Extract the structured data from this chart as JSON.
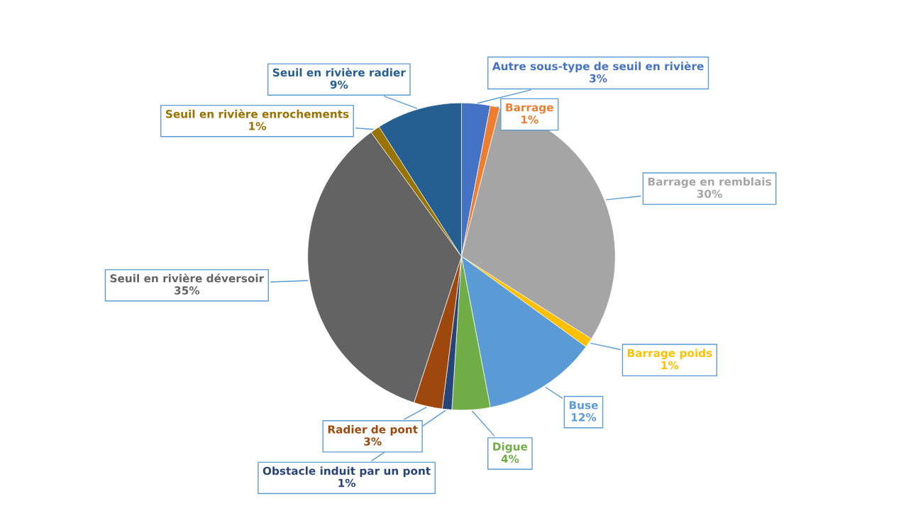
{
  "chart_data": {
    "type": "pie",
    "categories": [
      "Autre sous-type de seuil en rivière",
      "Barrage",
      "Barrage en remblais",
      "Barrage poids",
      "Buse",
      "Digue",
      "Obstacle induit par un pont",
      "Radier de pont",
      "Seuil en rivière déversoir",
      "Seuil en rivière enrochements",
      "Seuil en rivière radier"
    ],
    "values": [
      3,
      1,
      30,
      1,
      12,
      4,
      1,
      3,
      35,
      1,
      9
    ],
    "colors": [
      "#4472c4",
      "#ed7d31",
      "#a5a5a5",
      "#ffc000",
      "#5b9bd5",
      "#70ad47",
      "#264478",
      "#9e480e",
      "#636363",
      "#997300",
      "#255e91"
    ],
    "value_labels": [
      "3%",
      "1%",
      "30%",
      "1%",
      "12%",
      "4%",
      "1%",
      "3%",
      "35%",
      "1%",
      "9%"
    ],
    "legend": false
  }
}
